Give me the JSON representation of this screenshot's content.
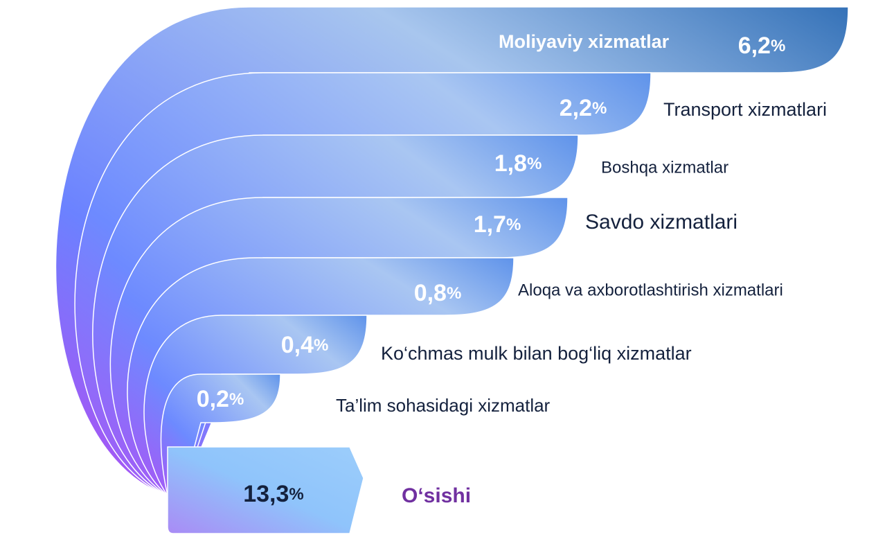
{
  "items": [
    {
      "name": "Moliyaviy xizmatlar",
      "value": "6,2",
      "unit": "%"
    },
    {
      "name": "Transport xizmatlari",
      "value": "2,2",
      "unit": "%"
    },
    {
      "name": "Boshqa xizmatlar",
      "value": "1,8",
      "unit": "%"
    },
    {
      "name": "Savdo xizmatlari",
      "value": "1,7",
      "unit": "%"
    },
    {
      "name": "Aloqa va axborotlashtirish xizmatlari",
      "value": "0,8",
      "unit": "%"
    },
    {
      "name": "Ko‘chmas mulk bilan bog‘liq xizmatlar",
      "value": "0,4",
      "unit": "%"
    },
    {
      "name": "Ta’lim sohasidagi xizmatlar",
      "value": "0,2",
      "unit": "%"
    }
  ],
  "total": {
    "value": "13,3",
    "unit": "%",
    "label": "O‘sishi"
  }
}
